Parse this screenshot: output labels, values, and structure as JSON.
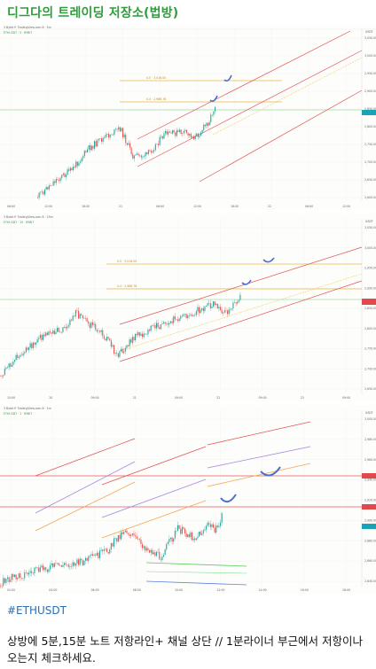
{
  "channel": {
    "title": "디그다의 트레이딩 저장소(법방)",
    "title_color": "#2e9d3a"
  },
  "charts": [
    {
      "id": "5m",
      "header": "3 Bybit P. TradingView.com 8 · 5m",
      "symbol_info": "ETHUSDT · 5 · BYBIT",
      "currency": "USDT",
      "fib_labels": [
        "0.5 · 3,016.00",
        "0.4 · 2,986.76"
      ],
      "price_labels": [
        "3,050.00",
        "3,000.00",
        "2,950.00",
        "2,900.00",
        "2,850.00",
        "2,800.00",
        "2,750.00",
        "2,700.00",
        "2,650.00",
        "2,600.00"
      ],
      "time_labels": [
        "06:00",
        "12:00",
        "18:00",
        "21",
        "06:00",
        "12:00",
        "18:00",
        "22",
        "06:00",
        "12:00"
      ]
    },
    {
      "id": "15m",
      "header": "3 Bybit P. TradingView.com 8 · 15m",
      "symbol_info": "ETHUSDT · 15 · BYBIT",
      "currency": "USDT",
      "fib_labels": [
        "0.5 · 3,016.00",
        "0.4 · 2,986.76"
      ],
      "price_labels": [
        "3,050.00",
        "3,000.00",
        "2,950.00",
        "2,900.00",
        "2,850.00",
        "2,800.00",
        "2,750.00",
        "2,700.00",
        "2,650.00"
      ],
      "time_labels": [
        "15:00",
        "20",
        "09:00",
        "21",
        "09:00",
        "22",
        "09:00",
        "23",
        "09:00"
      ]
    },
    {
      "id": "1m",
      "header": "3 Bybit P. TradingView.com 8 · 1m",
      "symbol_info": "ETHUSDT · 1 · BYBIT",
      "currency": "USDT",
      "fib_labels": [],
      "price_labels": [
        "3,000.00",
        "2,980.00",
        "2,960.00",
        "2,940.00",
        "2,920.00",
        "2,900.00",
        "2,880.00",
        "2,860.00",
        "2,840.00"
      ],
      "time_labels": [
        "02:00",
        "04:00",
        "06:00",
        "08:00",
        "10:00",
        "12:00",
        "14:00",
        "16:00",
        "18:00"
      ]
    }
  ],
  "post": {
    "hashtag": "#ETHUSDT",
    "caption": "상방에 5분,15분 노트 저항라인+ 채널 상단 // 1분라이너 부근에서 저항이나오는지 체크하세요."
  }
}
